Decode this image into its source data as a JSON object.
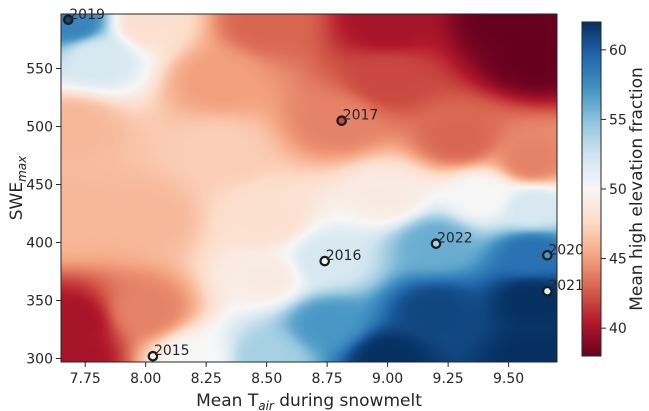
{
  "chart_data": {
    "type": "scatter",
    "title": "",
    "xlabel_parts": [
      "Mean T",
      "air",
      " during snowmelt"
    ],
    "ylabel_parts": [
      "SWE",
      "max"
    ],
    "colorbar_label": "Mean high elevation fraction",
    "xlim": [
      7.65,
      9.7
    ],
    "ylim": [
      297,
      597
    ],
    "xticks": [
      "7.75",
      "8.00",
      "8.25",
      "8.50",
      "8.75",
      "9.00",
      "9.25",
      "9.50"
    ],
    "xtick_values": [
      7.75,
      8.0,
      8.25,
      8.5,
      8.75,
      9.0,
      9.25,
      9.5
    ],
    "yticks": [
      "300",
      "350",
      "400",
      "450",
      "500",
      "550"
    ],
    "ytick_values": [
      300,
      350,
      400,
      450,
      500,
      550
    ],
    "colorbar_range": [
      38,
      62
    ],
    "colorbar_ticks": [
      "40",
      "45",
      "50",
      "55",
      "60"
    ],
    "colorbar_tick_values": [
      40,
      45,
      50,
      55,
      60
    ],
    "colormap": [
      "#67001f",
      "#b2182b",
      "#d6604d",
      "#f4a582",
      "#fddbc7",
      "#f7f7f7",
      "#d1e5f0",
      "#92c5de",
      "#4393c3",
      "#2166ac",
      "#053061"
    ],
    "grid": false,
    "points": [
      {
        "label": "2015",
        "x": 8.03,
        "y": 302,
        "value": 51
      },
      {
        "label": "2016",
        "x": 8.74,
        "y": 384,
        "value": 50
      },
      {
        "label": "2017",
        "x": 8.81,
        "y": 505,
        "value": 42
      },
      {
        "label": "2019",
        "x": 7.68,
        "y": 592,
        "value": 61
      },
      {
        "label": "2020",
        "x": 9.66,
        "y": 389,
        "value": 57
      },
      {
        "label": "2021",
        "x": 9.66,
        "y": 358,
        "value": 51
      },
      {
        "label": "2022",
        "x": 9.2,
        "y": 399,
        "value": 54
      }
    ],
    "surface_anchors": [
      {
        "x": 7.7,
        "y": 590,
        "value": 58
      },
      {
        "x": 7.8,
        "y": 560,
        "value": 52
      },
      {
        "x": 8.0,
        "y": 590,
        "value": 48
      },
      {
        "x": 8.5,
        "y": 590,
        "value": 43
      },
      {
        "x": 9.0,
        "y": 590,
        "value": 40
      },
      {
        "x": 9.5,
        "y": 590,
        "value": 38
      },
      {
        "x": 9.6,
        "y": 560,
        "value": 38
      },
      {
        "x": 9.0,
        "y": 540,
        "value": 42
      },
      {
        "x": 8.3,
        "y": 540,
        "value": 45
      },
      {
        "x": 7.7,
        "y": 500,
        "value": 46
      },
      {
        "x": 8.3,
        "y": 480,
        "value": 47
      },
      {
        "x": 8.8,
        "y": 505,
        "value": 44
      },
      {
        "x": 9.3,
        "y": 490,
        "value": 43
      },
      {
        "x": 9.6,
        "y": 470,
        "value": 44
      },
      {
        "x": 7.7,
        "y": 420,
        "value": 46
      },
      {
        "x": 8.0,
        "y": 420,
        "value": 46
      },
      {
        "x": 8.5,
        "y": 420,
        "value": 48
      },
      {
        "x": 9.0,
        "y": 440,
        "value": 49
      },
      {
        "x": 9.4,
        "y": 440,
        "value": 50
      },
      {
        "x": 9.6,
        "y": 430,
        "value": 52
      },
      {
        "x": 7.7,
        "y": 330,
        "value": 40
      },
      {
        "x": 8.0,
        "y": 340,
        "value": 44
      },
      {
        "x": 8.5,
        "y": 370,
        "value": 49
      },
      {
        "x": 8.75,
        "y": 384,
        "value": 52
      },
      {
        "x": 9.2,
        "y": 399,
        "value": 56
      },
      {
        "x": 9.6,
        "y": 390,
        "value": 59
      },
      {
        "x": 9.6,
        "y": 350,
        "value": 62
      },
      {
        "x": 9.2,
        "y": 340,
        "value": 61
      },
      {
        "x": 8.75,
        "y": 330,
        "value": 57
      },
      {
        "x": 8.5,
        "y": 300,
        "value": 54
      },
      {
        "x": 9.0,
        "y": 300,
        "value": 62
      },
      {
        "x": 9.6,
        "y": 300,
        "value": 62
      },
      {
        "x": 8.2,
        "y": 300,
        "value": 50
      },
      {
        "x": 7.7,
        "y": 300,
        "value": 40
      }
    ]
  }
}
